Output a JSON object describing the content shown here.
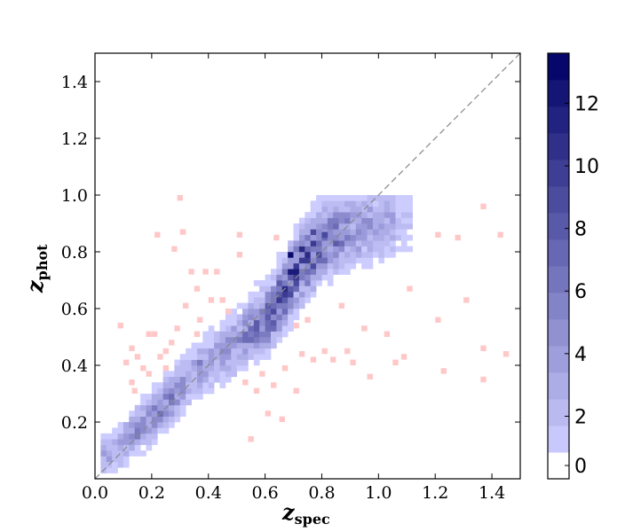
{
  "chart_data": {
    "type": "heatmap",
    "title": "",
    "xlabel": {
      "main": "z",
      "sub": "spec"
    },
    "ylabel": {
      "main": "z",
      "sub": "phot"
    },
    "xlim": [
      0.0,
      1.5
    ],
    "ylim": [
      0.0,
      1.5
    ],
    "x_ticks": [
      "0.0",
      "0.2",
      "0.4",
      "0.6",
      "0.8",
      "1.0",
      "1.2",
      "1.4"
    ],
    "y_ticks": [
      "0.2",
      "0.4",
      "0.6",
      "0.8",
      "1.0",
      "1.2",
      "1.4"
    ],
    "grid": false,
    "reference_line": {
      "style": "dashed",
      "color": "#888888",
      "from": [
        0.0,
        0.0
      ],
      "to": [
        1.5,
        1.5
      ]
    },
    "bin_size": 0.02,
    "colorbar": {
      "range": [
        0,
        13.6
      ],
      "ticks": [
        "0",
        "2",
        "4",
        "6",
        "8",
        "10",
        "12"
      ],
      "levels": 16,
      "low_color": "#ccccff",
      "high_color": "#000066"
    },
    "outlier_color": "#ffc8c8",
    "density_ridges": [
      {
        "x": [
          0.05,
          0.2,
          0.35,
          0.5,
          0.62,
          0.7,
          0.8,
          0.9,
          1.05
        ],
        "y": [
          0.08,
          0.22,
          0.37,
          0.48,
          0.58,
          0.72,
          0.83,
          0.87,
          0.9
        ]
      }
    ],
    "peak_bins": [
      {
        "x": 0.68,
        "y": 0.78,
        "count": 13
      },
      {
        "x": 0.68,
        "y": 0.72,
        "count": 12
      },
      {
        "x": 0.72,
        "y": 0.8,
        "count": 11
      },
      {
        "x": 0.7,
        "y": 0.7,
        "count": 10
      },
      {
        "x": 0.8,
        "y": 0.85,
        "count": 9
      },
      {
        "x": 0.76,
        "y": 0.86,
        "count": 9
      },
      {
        "x": 0.64,
        "y": 0.68,
        "count": 8
      },
      {
        "x": 0.84,
        "y": 0.82,
        "count": 8
      },
      {
        "x": 0.22,
        "y": 0.22,
        "count": 7
      },
      {
        "x": 0.52,
        "y": 0.5,
        "count": 7
      },
      {
        "x": 0.14,
        "y": 0.14,
        "count": 6
      },
      {
        "x": 0.36,
        "y": 0.4,
        "count": 6
      },
      {
        "x": 0.94,
        "y": 0.9,
        "count": 5
      }
    ],
    "outliers": [
      [
        0.08,
        0.53
      ],
      [
        0.1,
        0.4
      ],
      [
        0.12,
        0.45
      ],
      [
        0.12,
        0.33
      ],
      [
        0.13,
        0.3
      ],
      [
        0.14,
        0.42
      ],
      [
        0.16,
        0.38
      ],
      [
        0.18,
        0.36
      ],
      [
        0.2,
        0.5
      ],
      [
        0.21,
        0.85
      ],
      [
        0.22,
        0.42
      ],
      [
        0.24,
        0.44
      ],
      [
        0.26,
        0.47
      ],
      [
        0.27,
        0.8
      ],
      [
        0.28,
        0.52
      ],
      [
        0.29,
        0.98
      ],
      [
        0.3,
        0.86
      ],
      [
        0.31,
        0.6
      ],
      [
        0.33,
        0.72
      ],
      [
        0.35,
        0.66
      ],
      [
        0.36,
        0.55
      ],
      [
        0.38,
        0.72
      ],
      [
        0.4,
        0.62
      ],
      [
        0.42,
        0.72
      ],
      [
        0.44,
        0.62
      ],
      [
        0.46,
        0.58
      ],
      [
        0.5,
        0.78
      ],
      [
        0.52,
        0.33
      ],
      [
        0.54,
        0.13
      ],
      [
        0.56,
        0.3
      ],
      [
        0.58,
        0.36
      ],
      [
        0.6,
        0.22
      ],
      [
        0.62,
        0.32
      ],
      [
        0.63,
        0.84
      ],
      [
        0.65,
        0.2
      ],
      [
        0.66,
        0.38
      ],
      [
        0.7,
        0.53
      ],
      [
        0.72,
        0.43
      ],
      [
        0.74,
        0.55
      ],
      [
        0.76,
        0.41
      ],
      [
        0.8,
        0.44
      ],
      [
        0.83,
        0.41
      ],
      [
        0.86,
        0.6
      ],
      [
        0.88,
        0.44
      ],
      [
        0.9,
        0.4
      ],
      [
        0.94,
        0.52
      ],
      [
        0.96,
        0.35
      ],
      [
        1.02,
        0.5
      ],
      [
        1.05,
        0.4
      ],
      [
        1.08,
        0.42
      ],
      [
        1.1,
        0.66
      ],
      [
        1.2,
        0.55
      ],
      [
        1.22,
        0.37
      ],
      [
        1.27,
        0.84
      ],
      [
        1.3,
        0.62
      ],
      [
        1.36,
        0.95
      ],
      [
        1.36,
        0.45
      ],
      [
        1.36,
        0.34
      ],
      [
        1.42,
        0.85
      ],
      [
        1.44,
        0.43
      ],
      [
        0.5,
        0.85
      ],
      [
        0.35,
        0.5
      ],
      [
        0.7,
        0.3
      ],
      [
        0.18,
        0.5
      ],
      [
        0.24,
        0.38
      ],
      [
        1.2,
        0.85
      ]
    ]
  }
}
